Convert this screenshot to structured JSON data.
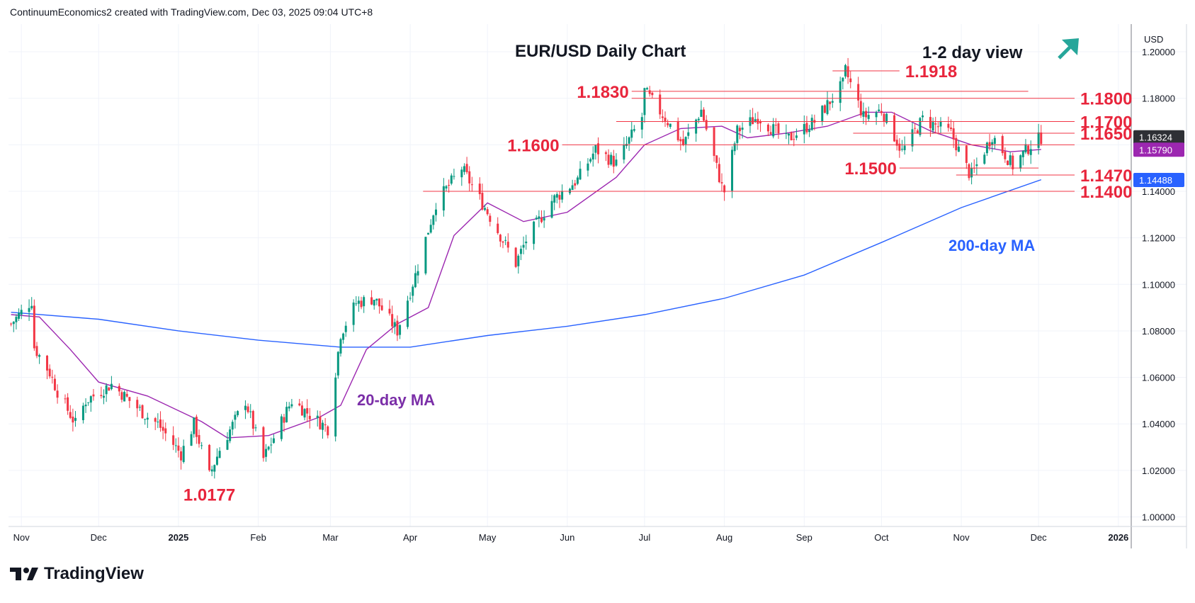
{
  "header": {
    "attribution": "ContinuumEconomics2 created with TradingView.com, Dec 03, 2025 09:04 UTC+8"
  },
  "footer": {
    "logo_text": "TradingView"
  },
  "chart_data": {
    "type": "candlestick",
    "title": "EUR/USD Daily Chart",
    "view_label": "1-2 day view",
    "view_icon": "arrow-up-right-icon",
    "currency": "USD",
    "y_ticks": [
      "1.20000",
      "1.18000",
      "1.16000",
      "1.14000",
      "1.12000",
      "1.10000",
      "1.08000",
      "1.06000",
      "1.04000",
      "1.02000",
      "1.00000"
    ],
    "ylim": [
      1.0,
      1.2
    ],
    "x_ticks": [
      {
        "label": "Nov",
        "date": "2024-11-01"
      },
      {
        "label": "Dec",
        "date": "2024-12-01"
      },
      {
        "label": "2025",
        "date": "2025-01-01",
        "bold": true
      },
      {
        "label": "Feb",
        "date": "2025-02-01"
      },
      {
        "label": "Mar",
        "date": "2025-03-01"
      },
      {
        "label": "Apr",
        "date": "2025-04-01"
      },
      {
        "label": "May",
        "date": "2025-05-01"
      },
      {
        "label": "Jun",
        "date": "2025-06-01"
      },
      {
        "label": "Jul",
        "date": "2025-07-01"
      },
      {
        "label": "Aug",
        "date": "2025-08-01"
      },
      {
        "label": "Sep",
        "date": "2025-09-01"
      },
      {
        "label": "Oct",
        "date": "2025-10-01"
      },
      {
        "label": "Nov",
        "date": "2025-11-01"
      },
      {
        "label": "Dec",
        "date": "2025-12-01"
      },
      {
        "label": "2026",
        "date": "2026-01-01",
        "bold": true
      }
    ],
    "xlim": [
      "2024-10-27",
      "2026-01-06"
    ],
    "price_path": [
      [
        "2024-10-28",
        1.083
      ],
      [
        "2024-11-05",
        1.093
      ],
      [
        "2024-11-06",
        1.073
      ],
      [
        "2024-11-12",
        1.062
      ],
      [
        "2024-11-15",
        1.054
      ],
      [
        "2024-11-22",
        1.04
      ],
      [
        "2024-11-26",
        1.05
      ],
      [
        "2024-12-06",
        1.057
      ],
      [
        "2024-12-13",
        1.05
      ],
      [
        "2024-12-20",
        1.043
      ],
      [
        "2024-12-24",
        1.04
      ],
      [
        "2025-01-02",
        1.027
      ],
      [
        "2025-01-07",
        1.04
      ],
      [
        "2025-01-13",
        1.0177
      ],
      [
        "2025-01-17",
        1.029
      ],
      [
        "2025-01-27",
        1.05
      ],
      [
        "2025-02-03",
        1.025
      ],
      [
        "2025-02-14",
        1.05
      ],
      [
        "2025-02-28",
        1.038
      ],
      [
        "2025-03-05",
        1.079
      ],
      [
        "2025-03-11",
        1.092
      ],
      [
        "2025-03-18",
        1.094
      ],
      [
        "2025-03-27",
        1.08
      ],
      [
        "2025-04-03",
        1.104
      ],
      [
        "2025-04-11",
        1.135
      ],
      [
        "2025-04-21",
        1.15
      ],
      [
        "2025-04-30",
        1.133
      ],
      [
        "2025-05-12",
        1.109
      ],
      [
        "2025-05-16",
        1.119
      ],
      [
        "2025-05-26",
        1.136
      ],
      [
        "2025-06-05",
        1.145
      ],
      [
        "2025-06-12",
        1.158
      ],
      [
        "2025-06-20",
        1.152
      ],
      [
        "2025-06-30",
        1.172
      ],
      [
        "2025-07-01",
        1.183
      ],
      [
        "2025-07-10",
        1.17
      ],
      [
        "2025-07-16",
        1.16
      ],
      [
        "2025-07-23",
        1.175
      ],
      [
        "2025-07-31",
        1.142
      ],
      [
        "2025-08-01",
        1.14
      ],
      [
        "2025-08-06",
        1.166
      ],
      [
        "2025-08-14",
        1.172
      ],
      [
        "2025-08-25",
        1.162
      ],
      [
        "2025-09-05",
        1.17
      ],
      [
        "2025-09-16",
        1.186
      ],
      [
        "2025-09-17",
        1.1918
      ],
      [
        "2025-09-24",
        1.172
      ],
      [
        "2025-10-01",
        1.175
      ],
      [
        "2025-10-09",
        1.157
      ],
      [
        "2025-10-17",
        1.171
      ],
      [
        "2025-10-28",
        1.165
      ],
      [
        "2025-11-04",
        1.148
      ],
      [
        "2025-11-05",
        1.147
      ],
      [
        "2025-11-13",
        1.164
      ],
      [
        "2025-11-21",
        1.151
      ],
      [
        "2025-11-28",
        1.16
      ],
      [
        "2025-12-02",
        1.1632
      ]
    ],
    "ma20_path": [
      [
        "2024-10-28",
        1.087
      ],
      [
        "2024-11-08",
        1.086
      ],
      [
        "2024-11-20",
        1.072
      ],
      [
        "2024-12-01",
        1.058
      ],
      [
        "2024-12-20",
        1.052
      ],
      [
        "2025-01-10",
        1.041
      ],
      [
        "2025-01-20",
        1.034
      ],
      [
        "2025-02-05",
        1.035
      ],
      [
        "2025-02-25",
        1.043
      ],
      [
        "2025-03-05",
        1.048
      ],
      [
        "2025-03-15",
        1.072
      ],
      [
        "2025-03-27",
        1.083
      ],
      [
        "2025-04-08",
        1.09
      ],
      [
        "2025-04-18",
        1.121
      ],
      [
        "2025-05-01",
        1.135
      ],
      [
        "2025-05-15",
        1.127
      ],
      [
        "2025-06-01",
        1.131
      ],
      [
        "2025-06-20",
        1.146
      ],
      [
        "2025-07-01",
        1.16
      ],
      [
        "2025-07-15",
        1.167
      ],
      [
        "2025-07-31",
        1.168
      ],
      [
        "2025-08-10",
        1.163
      ],
      [
        "2025-08-25",
        1.165
      ],
      [
        "2025-09-10",
        1.168
      ],
      [
        "2025-09-25",
        1.174
      ],
      [
        "2025-10-05",
        1.174
      ],
      [
        "2025-10-20",
        1.166
      ],
      [
        "2025-11-05",
        1.16
      ],
      [
        "2025-11-20",
        1.157
      ],
      [
        "2025-12-02",
        1.158
      ]
    ],
    "ma200_path": [
      [
        "2024-10-28",
        1.088
      ],
      [
        "2024-12-01",
        1.085
      ],
      [
        "2025-01-01",
        1.08
      ],
      [
        "2025-02-01",
        1.076
      ],
      [
        "2025-03-05",
        1.073
      ],
      [
        "2025-04-01",
        1.073
      ],
      [
        "2025-05-01",
        1.078
      ],
      [
        "2025-06-01",
        1.082
      ],
      [
        "2025-07-01",
        1.087
      ],
      [
        "2025-08-01",
        1.094
      ],
      [
        "2025-09-01",
        1.104
      ],
      [
        "2025-10-01",
        1.118
      ],
      [
        "2025-11-01",
        1.133
      ],
      [
        "2025-12-02",
        1.145
      ]
    ],
    "levels": [
      {
        "label": "1.1918",
        "value": 1.1918,
        "from": "2025-09-12",
        "to": "2025-10-08",
        "label_side": "right"
      },
      {
        "label": "1.1830",
        "value": 1.183,
        "from": "2025-06-26",
        "to": "2025-11-27",
        "label_side": "left"
      },
      {
        "label": "1.1800",
        "value": 1.18,
        "from": "2025-06-26",
        "to": "2025-12-15",
        "label_side": "right"
      },
      {
        "label": "1.1700",
        "value": 1.17,
        "from": "2025-06-20",
        "to": "2025-12-15",
        "label_side": "right"
      },
      {
        "label": "1.1650",
        "value": 1.165,
        "from": "2025-09-20",
        "to": "2025-12-15",
        "label_side": "right"
      },
      {
        "label": "1.1600",
        "value": 1.16,
        "from": "2025-05-30",
        "to": "2025-12-15",
        "label_side": "left"
      },
      {
        "label": "1.1500",
        "value": 1.15,
        "from": "2025-10-08",
        "to": "2025-12-01",
        "label_side": "left"
      },
      {
        "label": "1.1470",
        "value": 1.147,
        "from": "2025-10-30",
        "to": "2025-12-15",
        "label_side": "right"
      },
      {
        "label": "1.1400",
        "value": 1.14,
        "from": "2025-04-06",
        "to": "2025-12-15",
        "label_side": "right"
      }
    ],
    "low_annotation": {
      "label": "1.0177",
      "value": 1.0177,
      "date": "2025-01-13"
    },
    "annotations": [
      {
        "label": "20-day MA",
        "color": "#7b2fa8"
      },
      {
        "label": "200-day MA",
        "color": "#2962ff"
      }
    ],
    "price_tags": [
      {
        "label": "1.16324",
        "value": 1.16324,
        "color": "#2e3035"
      },
      {
        "label": "1.15790",
        "value": 1.1579,
        "color": "#9c27b0"
      },
      {
        "label": "1.14488",
        "value": 1.14488,
        "color": "#2962ff"
      }
    ],
    "colors": {
      "up": "#089981",
      "down": "#f23645",
      "ma20": "#9c27b0",
      "ma200": "#2962ff",
      "level": "#f23645",
      "level_text": "#e8253c",
      "arrow": "#26a69a"
    }
  }
}
